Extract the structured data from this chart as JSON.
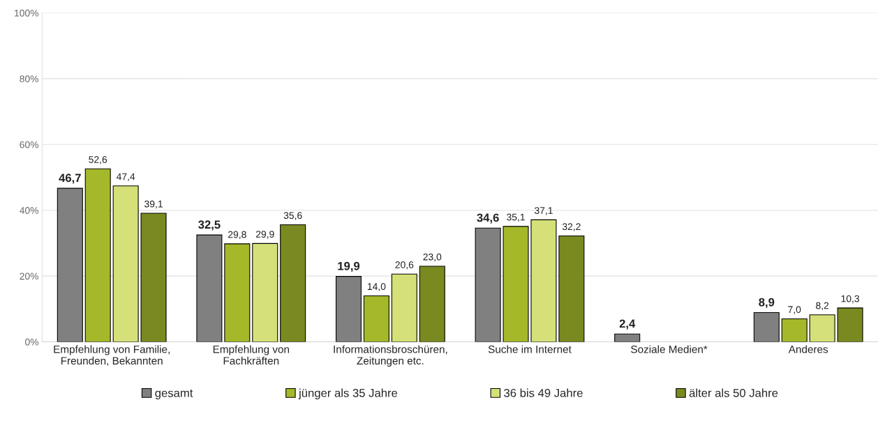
{
  "chart_data": {
    "type": "bar",
    "categories": [
      "Empfehlung von Familie,\nFreunden, Bekannten",
      "Empfehlung von\nFachkräften",
      "Informationsbroschüren,\nZeitungen etc.",
      "Suche im Internet",
      "Soziale Medien*",
      "Anderes"
    ],
    "series": [
      {
        "name": "gesamt",
        "color": "#808080",
        "values": [
          46.7,
          32.5,
          19.9,
          34.6,
          2.4,
          8.9
        ],
        "value_labels": [
          "46,7",
          "32,5",
          "19,9",
          "34,6",
          "2,4",
          "8,9"
        ]
      },
      {
        "name": "jünger als 35 Jahre",
        "color": "#a5b82a",
        "values": [
          52.6,
          29.8,
          14.0,
          35.1,
          null,
          7.0
        ],
        "value_labels": [
          "52,6",
          "29,8",
          "14,0",
          "35,1",
          null,
          "7,0"
        ]
      },
      {
        "name": "36 bis 49 Jahre",
        "color": "#d5e078",
        "values": [
          47.4,
          29.9,
          20.6,
          37.1,
          null,
          8.2
        ],
        "value_labels": [
          "47,4",
          "29,9",
          "20,6",
          "37,1",
          null,
          "8,2"
        ]
      },
      {
        "name": "älter als 50 Jahre",
        "color": "#7a8a20",
        "values": [
          39.1,
          35.6,
          23.0,
          32.2,
          null,
          10.3
        ],
        "value_labels": [
          "39,1",
          "35,6",
          "23,0",
          "32,2",
          null,
          "10,3"
        ]
      }
    ],
    "ylim": [
      0,
      100
    ],
    "yticks": [
      {
        "value": 0,
        "label": "0%"
      },
      {
        "value": 20,
        "label": "20%"
      },
      {
        "value": 40,
        "label": "40%"
      },
      {
        "value": 60,
        "label": "60%"
      },
      {
        "value": 80,
        "label": "80%"
      },
      {
        "value": 100,
        "label": "100%"
      }
    ],
    "grid": "y",
    "legend": "bottom"
  }
}
